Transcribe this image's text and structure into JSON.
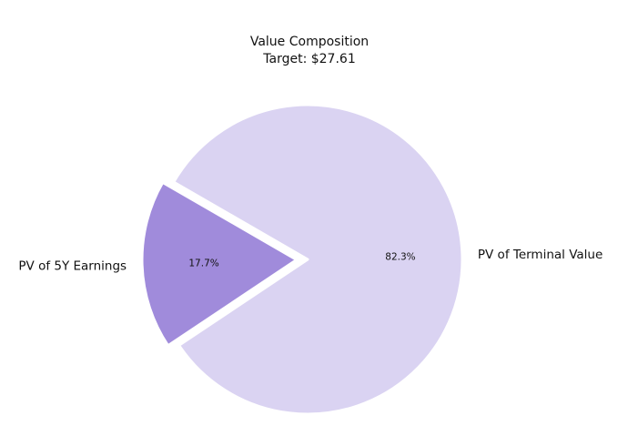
{
  "chart_data": {
    "type": "pie",
    "title": "Value Composition",
    "subtitle": "Target: $27.61",
    "categories": [
      "PV of 5Y Earnings",
      "PV of Terminal Value"
    ],
    "values": [
      17.7,
      82.3
    ],
    "value_labels": [
      "17.7%",
      "82.3%"
    ],
    "colors": [
      "#a08bdb",
      "#dad3f2"
    ],
    "exploded": [
      "PV of 5Y Earnings"
    ],
    "start_angle_deg": 150,
    "legend": "none"
  }
}
